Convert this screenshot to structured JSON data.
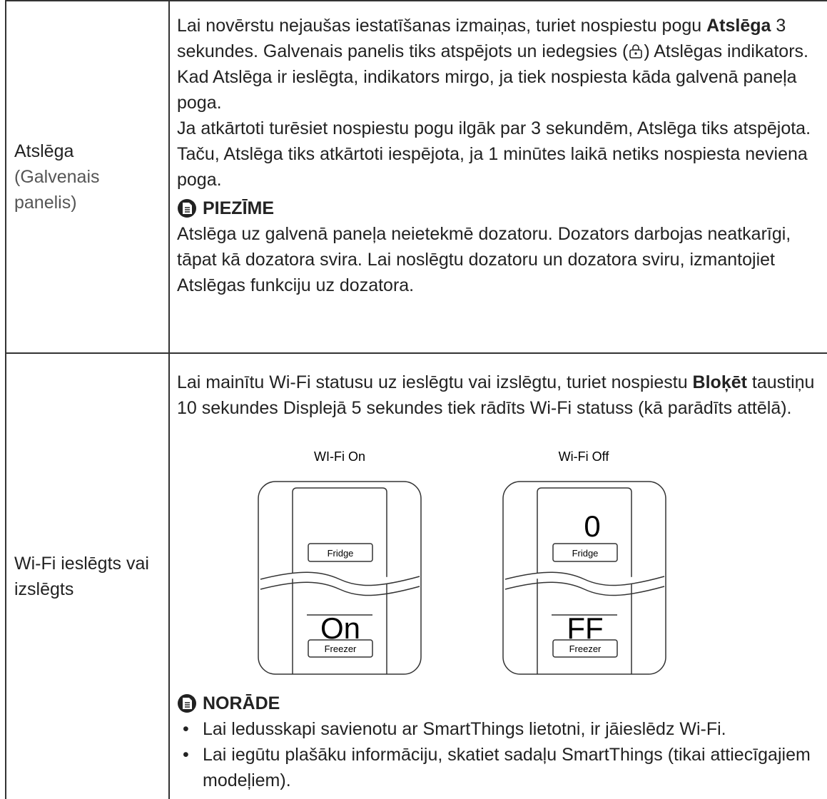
{
  "table": {
    "rows": [
      {
        "label": "Atslēga",
        "sublabel": "(Galvenais panelis)",
        "paragraphs": [
          [
            "Lai novērstu nejaušas iestatīšanas izmaiņas, turiet nospiestu pogu ",
            "Atslēga",
            " 3 sekundes. Galvenais panelis tiks atspējots un iedegsies (",
            ") Atslēgas indikators."
          ],
          [
            "Kad Atslēga ir ieslēgta, indikators mirgo, ja tiek nospiesta kāda galvenā paneļa poga."
          ],
          [
            "Ja atkārtoti turēsiet nospiestu pogu ilgāk par 3 sekundēm, Atslēga tiks atspējota."
          ],
          [
            "Taču, Atslēga tiks atkārtoti iespējota, ja 1 minūtes laikā netiks nospiesta neviena poga."
          ]
        ],
        "note": {
          "heading": "PIEZĪME",
          "text": "Atslēga uz galvenā paneļa neietekmē dozatoru. Dozators darbojas neatkarīgi, tāpat kā dozatora svira. Lai noslēgtu dozatoru un dozatora sviru, izmantojiet Atslēgas funkciju uz dozatora."
        }
      },
      {
        "label": "Wi-Fi ieslēgts vai izslēgts",
        "paragraphs": [
          [
            "Lai mainītu Wi-Fi statusu uz ieslēgtu vai izslēgtu, turiet nospiestu ",
            "Bloķēt",
            " taustiņu 10 sekundes Displejā 5 sekundes tiek rādīts Wi-Fi statuss (kā parādīts attēlā)."
          ]
        ],
        "figure": {
          "panels": [
            {
              "caption": "WI-Fi On",
              "fridge_button": "Fridge",
              "freezer_display": "On",
              "freezer_button": "Freezer"
            },
            {
              "caption": "Wi-Fi Off",
              "fridge_display": "0",
              "fridge_button": "Fridge",
              "freezer_display": "FF",
              "freezer_button": "Freezer"
            }
          ]
        },
        "note": {
          "heading": "NORĀDE",
          "bullets": [
            "Lai ledusskapi savienotu ar SmartThings lietotni, ir jāieslēdz Wi-Fi.",
            "Lai iegūtu plašāku informāciju, skatiet sadaļu SmartThings (tikai attiecīgajiem modeļiem)."
          ]
        }
      }
    ]
  }
}
